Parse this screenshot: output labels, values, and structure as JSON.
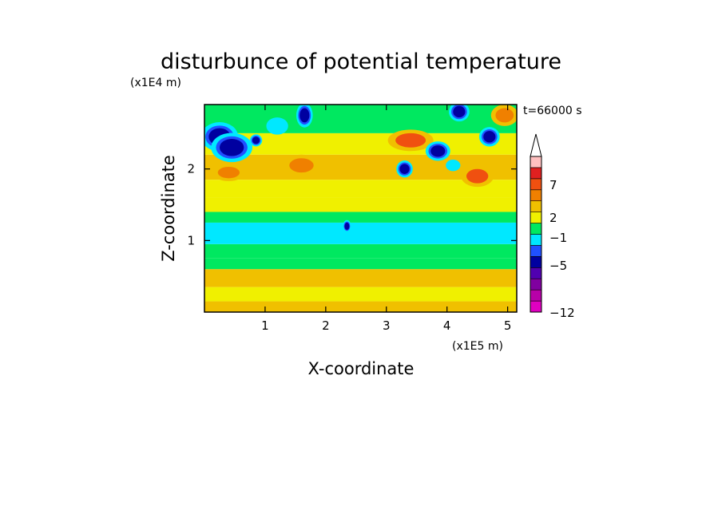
{
  "chart_data": {
    "type": "heatmap",
    "title": "disturbunce of potential temperature",
    "xlabel": "X-coordinate",
    "ylabel": "Z-coordinate",
    "x_unit": "(x1E5 m)",
    "y_unit": "(x1E4 m)",
    "time_label": "t=66000 s",
    "xlim": [
      0,
      5.15
    ],
    "ylim": [
      0,
      2.9
    ],
    "x_ticks": [
      1,
      2,
      3,
      4,
      5
    ],
    "y_ticks": [
      1,
      2
    ],
    "colorbar": {
      "labels": [
        {
          "text": "7",
          "value": 7
        },
        {
          "text": "2",
          "value": 2
        },
        {
          "text": "−1",
          "value": -1
        },
        {
          "text": "−5",
          "value": -5
        },
        {
          "text": "−12",
          "value": -12
        }
      ],
      "levels": [
        {
          "color": "#e000c0"
        },
        {
          "color": "#b800a8"
        },
        {
          "color": "#8000a0"
        },
        {
          "color": "#5000b0"
        },
        {
          "color": "#0000a0"
        },
        {
          "color": "#2050ff"
        },
        {
          "color": "#00e8ff"
        },
        {
          "color": "#00e860"
        },
        {
          "color": "#f0f000"
        },
        {
          "color": "#f0c000"
        },
        {
          "color": "#f08000"
        },
        {
          "color": "#f05010"
        },
        {
          "color": "#e02020"
        },
        {
          "color": "#ffc0c0"
        },
        {
          "color": "#ffffff"
        }
      ]
    },
    "z_bands": [
      {
        "z": [
          0.0,
          0.15
        ],
        "value": 2
      },
      {
        "z": [
          0.15,
          0.35
        ],
        "value": 1
      },
      {
        "z": [
          0.35,
          0.6
        ],
        "value": 2
      },
      {
        "z": [
          0.6,
          0.75
        ],
        "value": 0
      },
      {
        "z": [
          0.75,
          0.95
        ],
        "value": -0.5
      },
      {
        "z": [
          0.95,
          1.25
        ],
        "value": -1.5
      },
      {
        "z": [
          1.25,
          1.4
        ],
        "value": 0
      },
      {
        "z": [
          1.4,
          1.6
        ],
        "value": 0.5
      },
      {
        "z": [
          1.6,
          1.85
        ],
        "value": 1
      },
      {
        "z": [
          1.85,
          2.2
        ],
        "value": 2
      },
      {
        "z": [
          2.2,
          2.5
        ],
        "value": 1
      },
      {
        "z": [
          2.5,
          2.9
        ],
        "value": 0
      }
    ],
    "features": [
      {
        "x": 0.25,
        "z": 2.45,
        "rx": 0.18,
        "rz": 0.12,
        "value": -5
      },
      {
        "x": 0.45,
        "z": 2.3,
        "rx": 0.2,
        "rz": 0.12,
        "value": -6
      },
      {
        "x": 0.85,
        "z": 2.4,
        "rx": 0.06,
        "rz": 0.05,
        "value": -5
      },
      {
        "x": 1.65,
        "z": 2.75,
        "rx": 0.08,
        "rz": 0.1,
        "value": -6
      },
      {
        "x": 1.2,
        "z": 2.6,
        "rx": 0.18,
        "rz": 0.12,
        "value": -2
      },
      {
        "x": 1.6,
        "z": 2.05,
        "rx": 0.2,
        "rz": 0.1,
        "value": 4
      },
      {
        "x": 0.4,
        "z": 1.95,
        "rx": 0.18,
        "rz": 0.08,
        "value": 4
      },
      {
        "x": 3.4,
        "z": 2.4,
        "rx": 0.25,
        "rz": 0.1,
        "value": 5
      },
      {
        "x": 3.3,
        "z": 2.0,
        "rx": 0.08,
        "rz": 0.07,
        "value": -5
      },
      {
        "x": 3.85,
        "z": 2.25,
        "rx": 0.12,
        "rz": 0.08,
        "value": -5
      },
      {
        "x": 4.2,
        "z": 2.8,
        "rx": 0.1,
        "rz": 0.08,
        "value": -6
      },
      {
        "x": 4.7,
        "z": 2.45,
        "rx": 0.1,
        "rz": 0.08,
        "value": -5
      },
      {
        "x": 4.95,
        "z": 2.75,
        "rx": 0.15,
        "rz": 0.1,
        "value": 4
      },
      {
        "x": 4.5,
        "z": 1.9,
        "rx": 0.18,
        "rz": 0.1,
        "value": 5
      },
      {
        "x": 4.1,
        "z": 2.05,
        "rx": 0.12,
        "rz": 0.08,
        "value": -2
      },
      {
        "x": 2.35,
        "z": 1.2,
        "rx": 0.04,
        "rz": 0.05,
        "value": -6
      }
    ]
  }
}
